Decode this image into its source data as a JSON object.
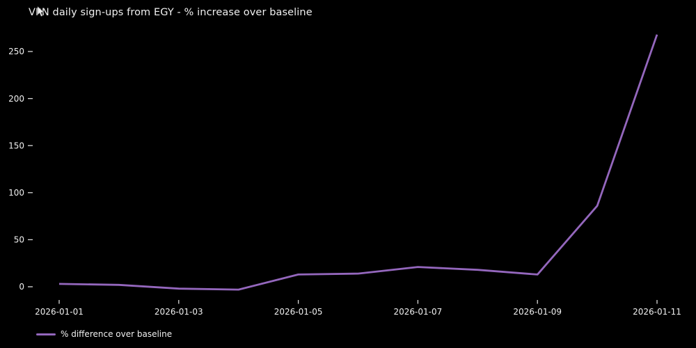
{
  "window": {
    "background": "#000000"
  },
  "chart": {
    "title": "VPN daily sign-ups from EGY - % increase over baseline",
    "legend": {
      "label": "% difference over baseline"
    },
    "colors": {
      "background": "#000000",
      "line": "#9467bd",
      "text": "#f0f0f0",
      "tick": "#d9d9d9"
    }
  },
  "chart_data": {
    "type": "line",
    "title": "VPN daily sign-ups from EGY - % increase over baseline",
    "xlabel": "",
    "ylabel": "",
    "x": [
      "2026-01-01",
      "2026-01-02",
      "2026-01-03",
      "2026-01-04",
      "2026-01-05",
      "2026-01-06",
      "2026-01-07",
      "2026-01-08",
      "2026-01-09",
      "2026-01-10",
      "2026-01-11"
    ],
    "series": [
      {
        "name": "% difference over baseline",
        "color": "#9467bd",
        "values": [
          3,
          2,
          -2,
          -3,
          13,
          14,
          21,
          18,
          13,
          86,
          268
        ]
      }
    ],
    "ytick_values": [
      0,
      50,
      100,
      150,
      200,
      250
    ],
    "xtick_indices": [
      0,
      2,
      4,
      6,
      8,
      10
    ],
    "xtick_labels": [
      "2026-01-01",
      "2026-01-03",
      "2026-01-05",
      "2026-01-07",
      "2026-01-09",
      "2026-01-11"
    ],
    "ylim": [
      -15,
      278
    ],
    "grid": false,
    "legend_position": "lower-left"
  }
}
